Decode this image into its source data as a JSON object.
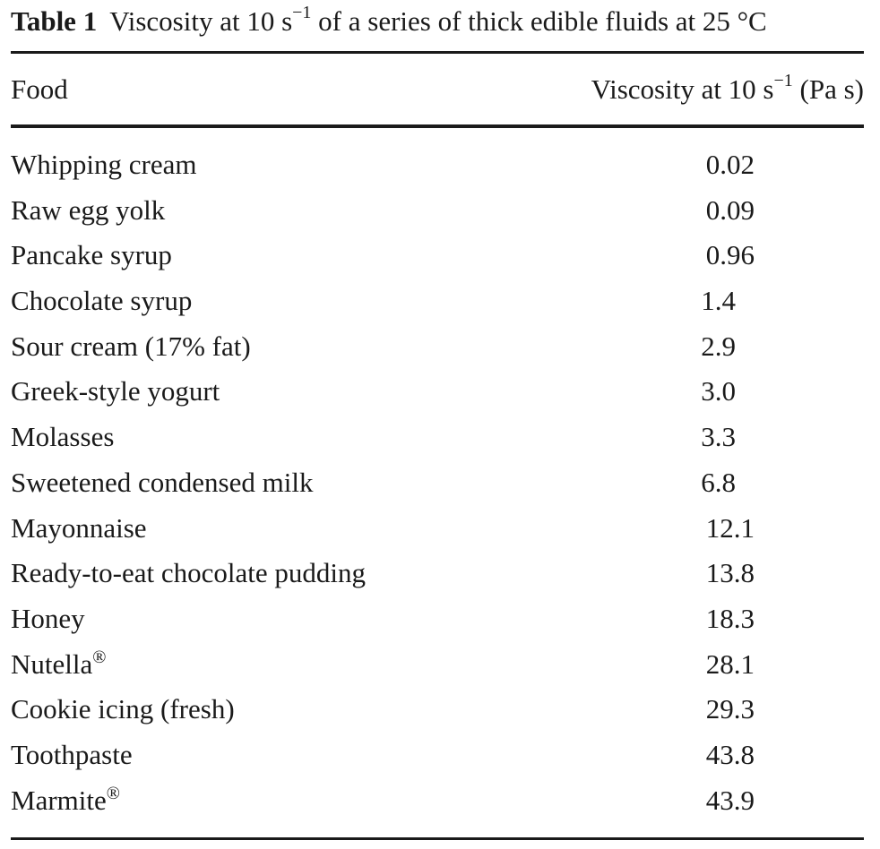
{
  "caption": {
    "label": "Table 1",
    "text_before": "Viscosity at 10 s",
    "superscript": "−1",
    "text_after": " of a series of thick edible fluids at 25 °C"
  },
  "header": {
    "food": "Food",
    "viscosity_before": "Viscosity at 10 s",
    "viscosity_superscript": "−1",
    "viscosity_after": " (Pa s)"
  },
  "rows": [
    {
      "food": "Whipping cream",
      "reg": "",
      "value": "0.02"
    },
    {
      "food": "Raw egg yolk",
      "reg": "",
      "value": "0.09"
    },
    {
      "food": "Pancake syrup",
      "reg": "",
      "value": "0.96"
    },
    {
      "food": "Chocolate syrup",
      "reg": "",
      "value": "1.4"
    },
    {
      "food": "Sour cream (17% fat)",
      "reg": "",
      "value": "2.9"
    },
    {
      "food": "Greek-style yogurt",
      "reg": "",
      "value": "3.0"
    },
    {
      "food": "Molasses",
      "reg": "",
      "value": "3.3"
    },
    {
      "food": "Sweetened condensed milk",
      "reg": "",
      "value": "6.8"
    },
    {
      "food": "Mayonnaise",
      "reg": "",
      "value": "12.1"
    },
    {
      "food": "Ready-to-eat chocolate pudding",
      "reg": "",
      "value": "13.8"
    },
    {
      "food": "Honey",
      "reg": "",
      "value": "18.3"
    },
    {
      "food": "Nutella",
      "reg": "®",
      "value": "28.1"
    },
    {
      "food": "Cookie icing (fresh)",
      "reg": "",
      "value": "29.3"
    },
    {
      "food": "Toothpaste",
      "reg": "",
      "value": "43.8"
    },
    {
      "food": "Marmite",
      "reg": "®",
      "value": "43.9"
    }
  ]
}
